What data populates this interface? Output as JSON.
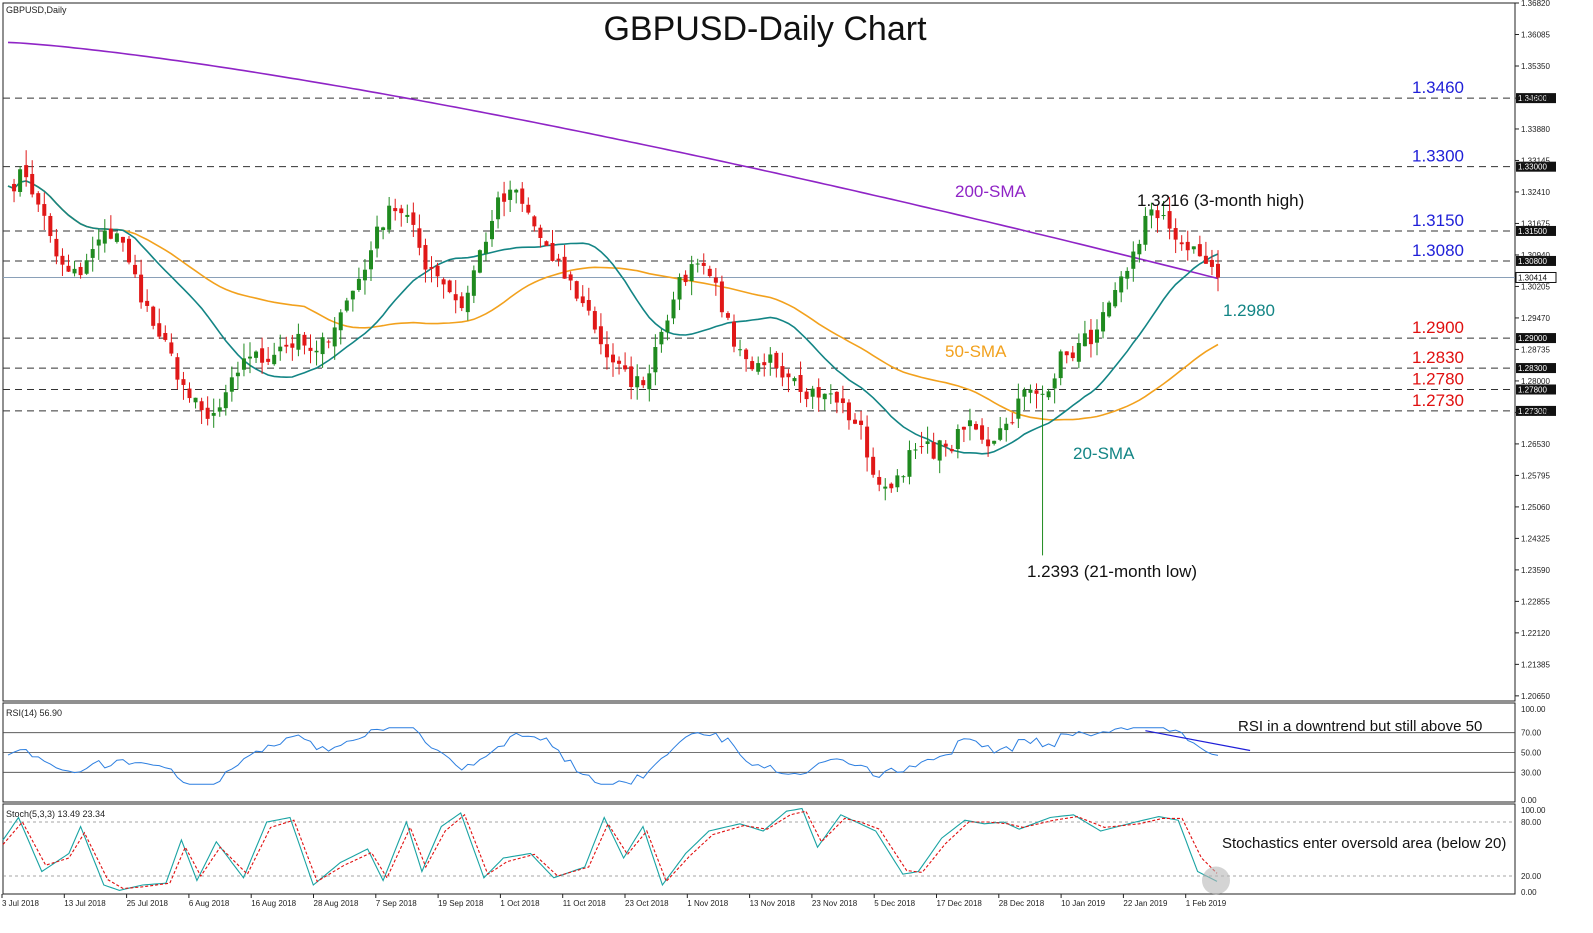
{
  "window": {
    "symbol_label": "GBPUSD,Daily",
    "title": "GBPUSD-Daily Chart"
  },
  "colors": {
    "bull": "#1f8a1f",
    "bear": "#e01818",
    "sma20": "#138585",
    "sma50": "#f2a11d",
    "sma200": "#8f24c6",
    "level_blue": "#1f1fd8",
    "level_red": "#e01010",
    "rsi": "#2d7fe0",
    "stoch_main": "#1aa3a3",
    "stoch_signal": "#e01010"
  },
  "chart_data": [
    {
      "type": "candlestick",
      "name": "price",
      "ylim": [
        1.2053,
        1.3682
      ],
      "price_ticks": [
        "1.36820",
        "1.36085",
        "1.35350",
        "1.34600",
        "1.33880",
        "1.33145",
        "1.32410",
        "1.31675",
        "1.30940",
        "1.30205",
        "1.29470",
        "1.28735",
        "1.28000",
        "1.27265",
        "1.26530",
        "1.25795",
        "1.25060",
        "1.24325",
        "1.23590",
        "1.22855",
        "1.22120",
        "1.21385",
        "1.20650"
      ],
      "price_tick_values": [
        1.3682,
        1.36085,
        1.3535,
        1.346,
        1.3388,
        1.33145,
        1.3241,
        1.31675,
        1.3094,
        1.30205,
        1.2947,
        1.28735,
        1.28,
        1.27265,
        1.2653,
        1.25795,
        1.2506,
        1.24325,
        1.2359,
        1.22855,
        1.2212,
        1.21385,
        1.2065
      ],
      "date_labels": [
        "3 Jul 2018",
        "13 Jul 2018",
        "25 Jul 2018",
        "6 Aug 2018",
        "16 Aug 2018",
        "28 Aug 2018",
        "7 Sep 2018",
        "19 Sep 2018",
        "1 Oct 2018",
        "11 Oct 2018",
        "23 Oct 2018",
        "1 Nov 2018",
        "13 Nov 2018",
        "23 Nov 2018",
        "5 Dec 2018",
        "17 Dec 2018",
        "28 Dec 2018",
        "10 Jan 2019",
        "22 Jan 2019",
        "1 Feb 2019"
      ],
      "levels": [
        {
          "value": 1.346,
          "label": "1.3460",
          "tag": "1.34600",
          "color": "level_blue"
        },
        {
          "value": 1.33,
          "label": "1.3300",
          "tag": "1.33000",
          "color": "level_blue"
        },
        {
          "value": 1.315,
          "label": "1.3150",
          "tag": "1.31500",
          "color": "level_blue"
        },
        {
          "value": 1.308,
          "label": "1.3080",
          "tag": "1.30800",
          "color": "level_blue"
        },
        {
          "value": 1.29,
          "label": "1.2900",
          "tag": "1.29000",
          "color": "level_red"
        },
        {
          "value": 1.283,
          "label": "1.2830",
          "tag": "1.28300",
          "color": "level_red"
        },
        {
          "value": 1.278,
          "label": "1.2780",
          "tag": "1.27800",
          "color": "level_red"
        },
        {
          "value": 1.273,
          "label": "1.2730",
          "tag": "1.27300",
          "color": "level_red"
        }
      ],
      "current_price": {
        "value": 1.30414,
        "tag": "1.30414"
      },
      "annotations": [
        {
          "text": "200-SMA",
          "color": "sma200"
        },
        {
          "text": "50-SMA",
          "color": "sma50"
        },
        {
          "text": "20-SMA",
          "color": "sma20"
        },
        {
          "text": "1.2980",
          "color": "sma20"
        },
        {
          "text": "1.3216 (3-month high)",
          "color": "text"
        },
        {
          "text": "1.2393 (21-month low)",
          "color": "text"
        }
      ],
      "anchors": [
        [
          0,
          1.3255
        ],
        [
          3,
          1.3285
        ],
        [
          6,
          1.3175
        ],
        [
          9,
          1.306
        ],
        [
          12,
          1.3045
        ],
        [
          15,
          1.313
        ],
        [
          18,
          1.315
        ],
        [
          21,
          1.304
        ],
        [
          24,
          1.293
        ],
        [
          27,
          1.285
        ],
        [
          30,
          1.276
        ],
        [
          33,
          1.2705
        ],
        [
          36,
          1.2755
        ],
        [
          39,
          1.286
        ],
        [
          42,
          1.285
        ],
        [
          45,
          1.288
        ],
        [
          48,
          1.289
        ],
        [
          51,
          1.286
        ],
        [
          54,
          1.2935
        ],
        [
          57,
          1.301
        ],
        [
          60,
          1.3105
        ],
        [
          63,
          1.3215
        ],
        [
          66,
          1.318
        ],
        [
          69,
          1.3075
        ],
        [
          72,
          1.3035
        ],
        [
          75,
          1.297
        ],
        [
          78,
          1.31
        ],
        [
          81,
          1.321
        ],
        [
          84,
          1.324
        ],
        [
          87,
          1.316
        ],
        [
          90,
          1.308
        ],
        [
          93,
          1.3025
        ],
        [
          96,
          1.296
        ],
        [
          99,
          1.286
        ],
        [
          102,
          1.281
        ],
        [
          105,
          1.279
        ],
        [
          108,
          1.293
        ],
        [
          111,
          1.302
        ],
        [
          114,
          1.309
        ],
        [
          117,
          1.3025
        ],
        [
          120,
          1.288
        ],
        [
          123,
          1.281
        ],
        [
          126,
          1.285
        ],
        [
          129,
          1.282
        ],
        [
          132,
          1.278
        ],
        [
          135,
          1.277
        ],
        [
          138,
          1.274
        ],
        [
          141,
          1.268
        ],
        [
          144,
          1.254
        ],
        [
          147,
          1.258
        ],
        [
          150,
          1.264
        ],
        [
          153,
          1.264
        ],
        [
          156,
          1.265
        ],
        [
          159,
          1.27
        ],
        [
          162,
          1.266
        ],
        [
          165,
          1.27
        ],
        [
          168,
          1.277
        ],
        [
          171,
          1.277
        ],
        [
          174,
          1.285
        ],
        [
          177,
          1.288
        ],
        [
          180,
          1.292
        ],
        [
          183,
          1.299
        ],
        [
          186,
          1.309
        ],
        [
          189,
          1.319
        ],
        [
          192,
          1.316
        ],
        [
          195,
          1.3105
        ],
        [
          198,
          1.308
        ],
        [
          200,
          1.3041
        ]
      ],
      "series_labels": {
        "sma20": "20-SMA",
        "sma50": "50-SMA",
        "sma200": "200-SMA"
      }
    },
    {
      "type": "line",
      "name": "RSI",
      "header": "RSI(14) 56.90",
      "ylim": [
        0,
        100
      ],
      "ticks": [
        "100.00",
        "70.00",
        "50.00",
        "30.00",
        "0.00"
      ],
      "tick_values": [
        100,
        70,
        50,
        30,
        0
      ],
      "levels": [
        70,
        50,
        30
      ],
      "annotation": "RSI in a downtrend but still above 50",
      "trendline": [
        [
          188,
          72
        ],
        [
          202,
          52
        ]
      ]
    },
    {
      "type": "line",
      "name": "Stochastic",
      "header": "Stoch(5,3,3) 13.49 23.34",
      "ylim": [
        0,
        100
      ],
      "ticks": [
        "100.00",
        "80.00",
        "20.00",
        "0.00"
      ],
      "tick_values": [
        100,
        80,
        20,
        0
      ],
      "levels": [
        80,
        20
      ],
      "annotation": "Stochastics enter oversold area (below 20)",
      "main_anchors": [
        [
          0,
          60
        ],
        [
          4,
          85
        ],
        [
          10,
          25
        ],
        [
          17,
          45
        ],
        [
          20,
          75
        ],
        [
          26,
          10
        ],
        [
          30,
          4
        ],
        [
          36,
          10
        ],
        [
          42,
          12
        ],
        [
          46,
          60
        ],
        [
          50,
          15
        ],
        [
          55,
          58
        ],
        [
          62,
          18
        ],
        [
          68,
          80
        ],
        [
          74,
          85
        ],
        [
          80,
          10
        ],
        [
          87,
          35
        ],
        [
          94,
          50
        ],
        [
          98,
          15
        ],
        [
          104,
          80
        ],
        [
          108,
          25
        ],
        [
          113,
          75
        ],
        [
          118,
          90
        ],
        [
          124,
          18
        ],
        [
          129,
          40
        ],
        [
          136,
          45
        ],
        [
          142,
          18
        ],
        [
          150,
          30
        ],
        [
          155,
          85
        ],
        [
          160,
          40
        ],
        [
          165,
          75
        ],
        [
          170,
          10
        ],
        [
          176,
          45
        ],
        [
          182,
          70
        ],
        [
          190,
          78
        ],
        [
          196,
          70
        ],
        [
          202,
          92
        ],
        [
          206,
          95
        ],
        [
          210,
          52
        ],
        [
          216,
          88
        ],
        [
          220,
          80
        ],
        [
          225,
          70
        ],
        [
          232,
          22
        ],
        [
          236,
          25
        ],
        [
          242,
          62
        ],
        [
          248,
          82
        ],
        [
          253,
          78
        ],
        [
          258,
          80
        ],
        [
          262,
          72
        ],
        [
          270,
          85
        ],
        [
          276,
          88
        ],
        [
          283,
          70
        ],
        [
          292,
          80
        ],
        [
          298,
          86
        ],
        [
          303,
          82
        ],
        [
          308,
          25
        ],
        [
          313,
          14
        ]
      ],
      "signal_anchors": [
        [
          0,
          55
        ],
        [
          5,
          80
        ],
        [
          11,
          32
        ],
        [
          17,
          40
        ],
        [
          21,
          68
        ],
        [
          27,
          16
        ],
        [
          31,
          6
        ],
        [
          36,
          8
        ],
        [
          43,
          12
        ],
        [
          47,
          52
        ],
        [
          51,
          20
        ],
        [
          56,
          52
        ],
        [
          63,
          22
        ],
        [
          69,
          74
        ],
        [
          75,
          82
        ],
        [
          81,
          14
        ],
        [
          88,
          32
        ],
        [
          95,
          46
        ],
        [
          99,
          18
        ],
        [
          105,
          74
        ],
        [
          109,
          30
        ],
        [
          114,
          70
        ],
        [
          119,
          88
        ],
        [
          125,
          22
        ],
        [
          130,
          36
        ],
        [
          137,
          44
        ],
        [
          143,
          20
        ],
        [
          151,
          30
        ],
        [
          156,
          78
        ],
        [
          161,
          44
        ],
        [
          166,
          70
        ],
        [
          171,
          14
        ],
        [
          177,
          42
        ],
        [
          183,
          66
        ],
        [
          191,
          76
        ],
        [
          197,
          72
        ],
        [
          203,
          88
        ],
        [
          207,
          92
        ],
        [
          211,
          58
        ],
        [
          217,
          84
        ],
        [
          221,
          80
        ],
        [
          226,
          72
        ],
        [
          233,
          26
        ],
        [
          237,
          24
        ],
        [
          243,
          56
        ],
        [
          249,
          80
        ],
        [
          254,
          80
        ],
        [
          259,
          78
        ],
        [
          263,
          74
        ],
        [
          271,
          82
        ],
        [
          277,
          86
        ],
        [
          284,
          74
        ],
        [
          293,
          78
        ],
        [
          299,
          84
        ],
        [
          304,
          84
        ],
        [
          309,
          40
        ],
        [
          313,
          23
        ]
      ],
      "marker_label": "oversold"
    }
  ]
}
